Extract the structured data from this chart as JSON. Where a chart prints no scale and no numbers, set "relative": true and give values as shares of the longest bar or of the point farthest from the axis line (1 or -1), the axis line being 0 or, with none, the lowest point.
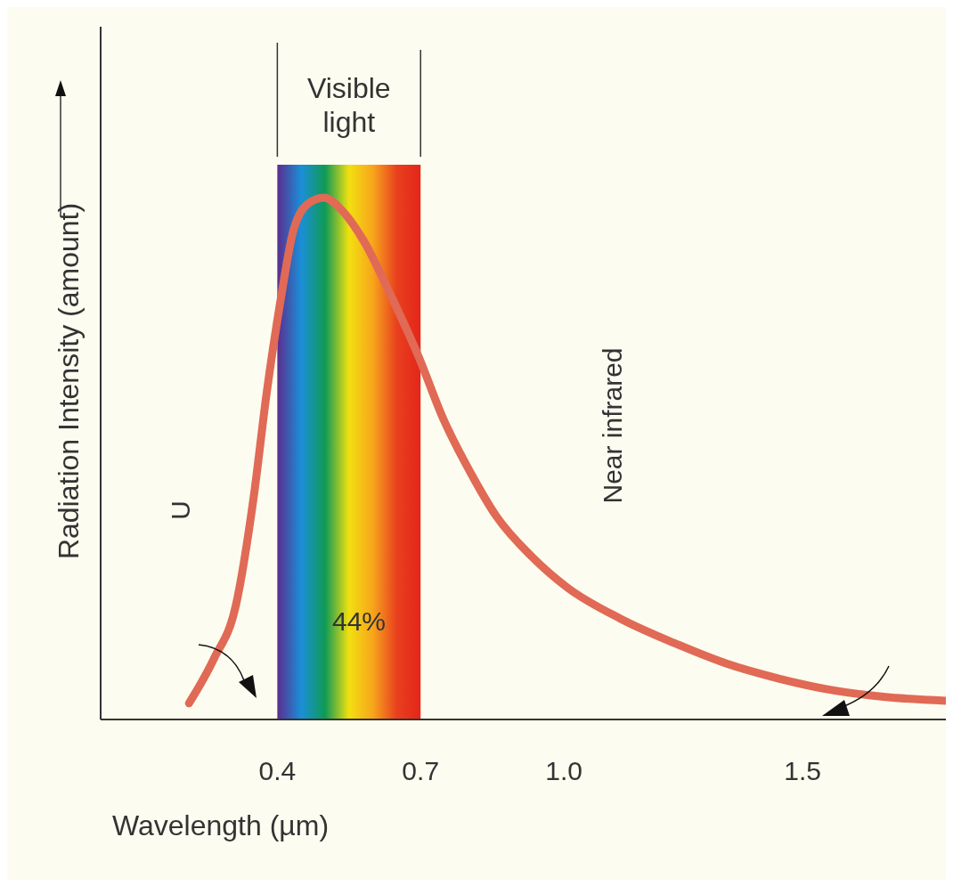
{
  "chart_data": {
    "type": "line",
    "relative": true,
    "xlabel": "Wavelength (µm)",
    "ylabel": "Radiation Intensity (amount)",
    "xlim": [
      0.03,
      1.8
    ],
    "xticks": [
      0.4,
      0.7,
      {
        "value": 1.0,
        "label": "1.0"
      },
      1.5
    ],
    "tick_labels": "x",
    "series": [
      {
        "color": "#e06a55",
        "x": [
          0.215,
          0.267,
          0.313,
          0.35,
          0.378,
          0.406,
          0.433,
          0.461,
          0.498,
          0.535,
          0.581,
          0.637,
          0.696,
          0.748,
          0.804,
          0.859,
          0.933,
          1.007,
          1.119,
          1.23,
          1.341,
          1.452,
          1.563,
          1.674,
          1.8
        ],
        "values": [
          0.031,
          0.116,
          0.218,
          0.423,
          0.628,
          0.799,
          0.935,
          0.986,
          1,
          0.976,
          0.917,
          0.814,
          0.695,
          0.575,
          0.474,
          0.389,
          0.312,
          0.253,
          0.193,
          0.147,
          0.107,
          0.078,
          0.056,
          0.043,
          0.036
        ]
      }
    ],
    "bands": [
      {
        "axis": "x",
        "from": 0.4,
        "to": 0.7,
        "label": "Visible light"
      }
    ],
    "annotations": [
      "U",
      "Near infrared",
      "44%"
    ]
  }
}
